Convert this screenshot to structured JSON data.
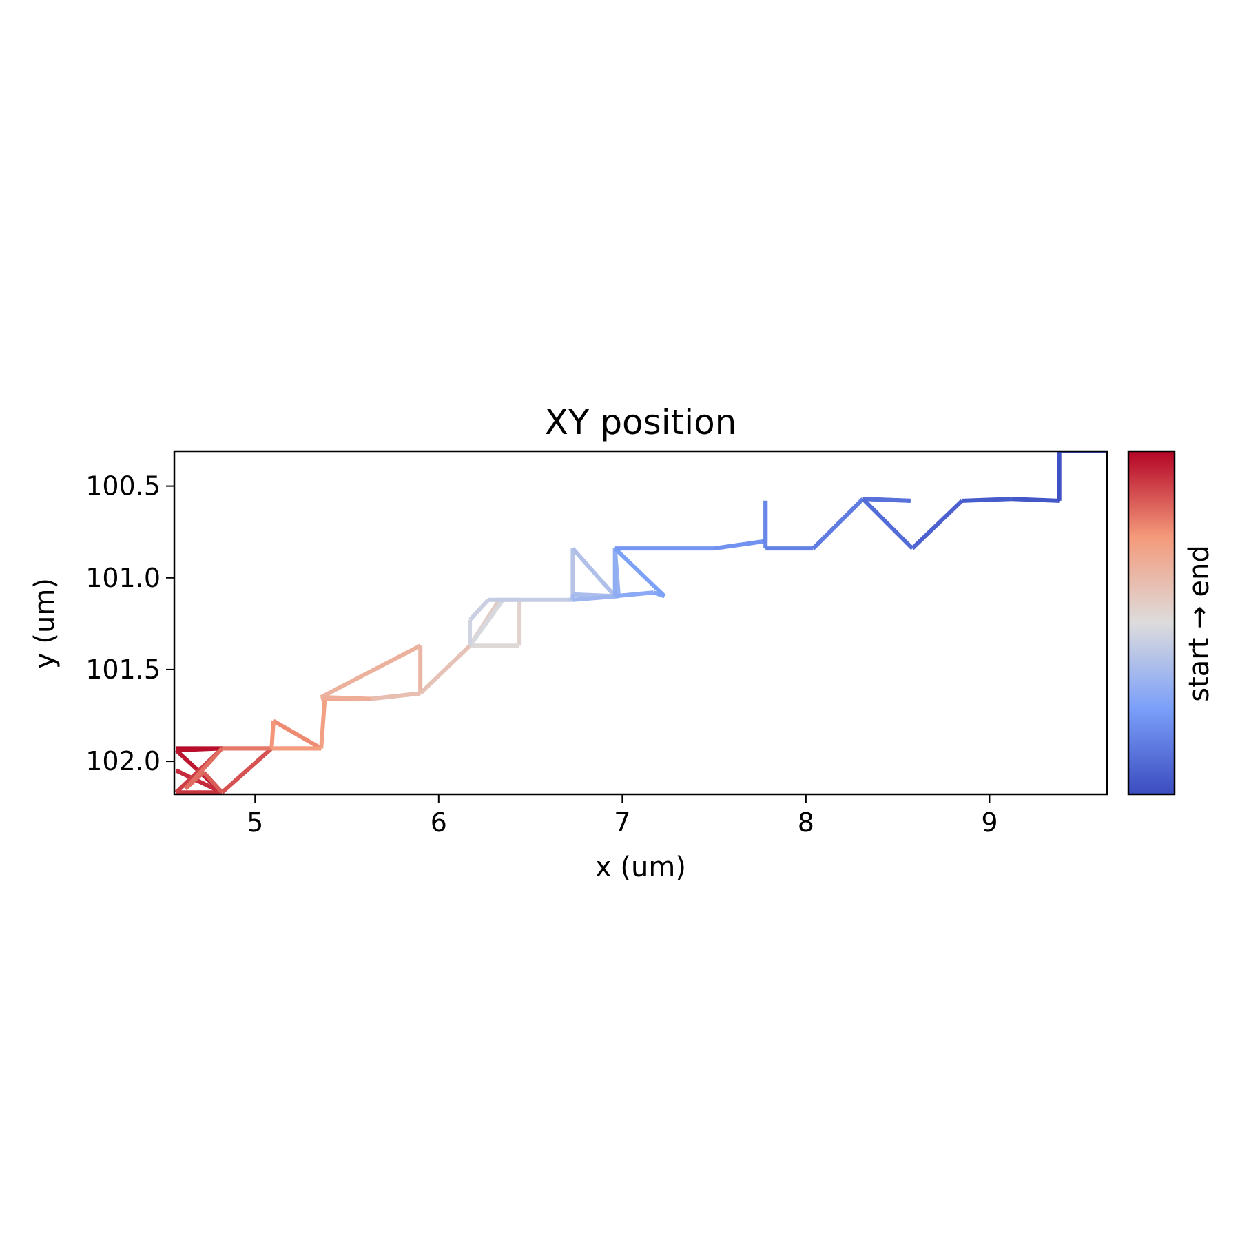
{
  "chart_data": {
    "type": "line",
    "title": "XY position",
    "xlabel": "x (um)",
    "ylabel": "y (um)",
    "xlim": [
      4.56,
      9.64
    ],
    "ylim": [
      102.18,
      100.31
    ],
    "y_inverted": true,
    "xticks": [
      5,
      6,
      7,
      8,
      9
    ],
    "xtick_labels": [
      "5",
      "6",
      "7",
      "8",
      "9"
    ],
    "yticks": [
      100.5,
      101.0,
      101.5,
      102.0
    ],
    "ytick_labels": [
      "100.5",
      "101.0",
      "101.5",
      "102.0"
    ],
    "grid": false,
    "colormap": "coolwarm",
    "colorbar": {
      "label": "start → end",
      "low_color": "#3b4cc0",
      "high_color": "#b40426",
      "direction": "top = start, bottom = end"
    },
    "series": [
      {
        "x": [
          4.57,
          4.82,
          4.57,
          4.82,
          4.57,
          4.82,
          4.57,
          4.82,
          5.09,
          4.82,
          4.72,
          4.62,
          4.82,
          5.09,
          5.36,
          5.1,
          5.09,
          5.36,
          5.38,
          5.36,
          5.63,
          5.36,
          5.9,
          5.9,
          5.63,
          5.9,
          6.17,
          6.17,
          6.33,
          6.44,
          6.44,
          6.17,
          6.35,
          6.17,
          6.17,
          6.27,
          6.7,
          6.73,
          6.73,
          6.96,
          6.73,
          6.73,
          6.98,
          6.96,
          6.96,
          7.17,
          7.23,
          6.96,
          6.96,
          7.5,
          7.78,
          7.78,
          7.78,
          8.04,
          8.31,
          8.57,
          8.31,
          8.58,
          8.6,
          8.85,
          9.12,
          9.38,
          9.38,
          9.64
        ],
        "y": [
          101.93,
          101.93,
          101.94,
          102.17,
          102.05,
          102.17,
          102.17,
          101.93,
          101.93,
          102.17,
          102.06,
          102.15,
          101.93,
          101.93,
          101.93,
          101.78,
          101.93,
          101.93,
          101.65,
          101.66,
          101.66,
          101.65,
          101.37,
          101.63,
          101.66,
          101.63,
          101.37,
          101.37,
          101.12,
          101.12,
          101.37,
          101.37,
          101.12,
          101.37,
          101.23,
          101.12,
          101.12,
          101.12,
          100.84,
          101.1,
          101.09,
          101.12,
          101.1,
          100.84,
          101.1,
          101.08,
          101.1,
          100.84,
          100.84,
          100.84,
          100.8,
          100.58,
          100.84,
          100.84,
          100.57,
          100.58,
          100.57,
          100.84,
          100.82,
          100.58,
          100.57,
          100.58,
          100.31,
          100.31
        ]
      }
    ]
  }
}
